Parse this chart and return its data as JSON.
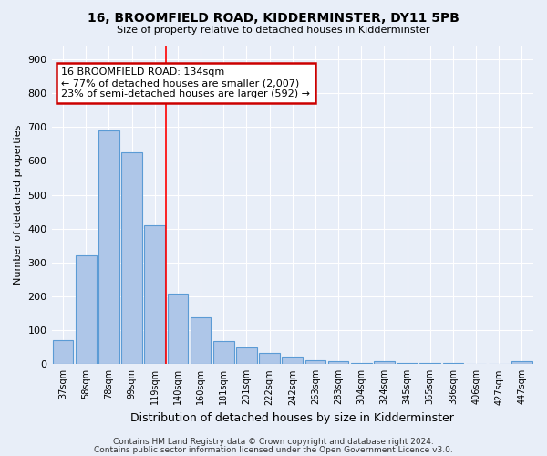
{
  "title": "16, BROOMFIELD ROAD, KIDDERMINSTER, DY11 5PB",
  "subtitle": "Size of property relative to detached houses in Kidderminster",
  "xlabel": "Distribution of detached houses by size in Kidderminster",
  "ylabel": "Number of detached properties",
  "categories": [
    "37sqm",
    "58sqm",
    "78sqm",
    "99sqm",
    "119sqm",
    "140sqm",
    "160sqm",
    "181sqm",
    "201sqm",
    "222sqm",
    "242sqm",
    "263sqm",
    "283sqm",
    "304sqm",
    "324sqm",
    "345sqm",
    "365sqm",
    "386sqm",
    "406sqm",
    "427sqm",
    "447sqm"
  ],
  "values": [
    70,
    320,
    690,
    625,
    410,
    207,
    137,
    68,
    48,
    33,
    22,
    12,
    8,
    3,
    8,
    3,
    3,
    3,
    0,
    0,
    8
  ],
  "bar_color": "#aec6e8",
  "bar_edge_color": "#5b9bd5",
  "annotation_text": "16 BROOMFIELD ROAD: 134sqm\n← 77% of detached houses are smaller (2,007)\n23% of semi-detached houses are larger (592) →",
  "annotation_box_color": "#ffffff",
  "annotation_box_edge": "#cc0000",
  "footer1": "Contains HM Land Registry data © Crown copyright and database right 2024.",
  "footer2": "Contains public sector information licensed under the Open Government Licence v3.0.",
  "background_color": "#e8eef8",
  "ylim": [
    0,
    940
  ],
  "yticks": [
    0,
    100,
    200,
    300,
    400,
    500,
    600,
    700,
    800,
    900
  ]
}
